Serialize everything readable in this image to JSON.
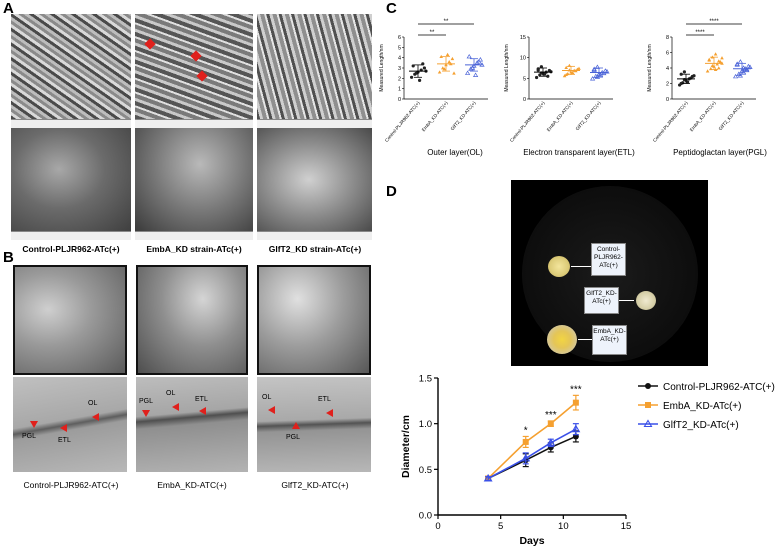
{
  "panels": {
    "A": {
      "letter": "A",
      "captions": [
        "Control-PLJR962-ATc(+)",
        "EmbA_KD strain-ATc(+)",
        "GlfT2_KD strain-ATc(+)"
      ]
    },
    "B": {
      "letter": "B",
      "captions": [
        "Control-PLJR962-ATC(+)",
        "EmbA_KD-ATC(+)",
        "GlfT2_KD-ATC(+)"
      ],
      "layer_labels": {
        "ol": "OL",
        "etl": "ETL",
        "pgl": "PGL"
      }
    },
    "C": {
      "letter": "C",
      "ylabel": "Measured Length/nm",
      "subplots": [
        {
          "caption": "Outer layer(OL)",
          "ylim": [
            0,
            6
          ],
          "yticks": [
            "0",
            "1",
            "2",
            "3",
            "4",
            "5",
            "6"
          ],
          "categories": [
            "Control-PLJR962-ATC(+)",
            "EmbA_KD-ATC(+)",
            "GlfT2_KD-ATC(+)"
          ],
          "sig": [
            "**",
            "**"
          ]
        },
        {
          "caption": "Electron transparent layer(ETL)",
          "ylim": [
            0,
            15
          ],
          "yticks": [
            "0",
            "5",
            "10",
            "15"
          ],
          "categories": [
            "Control-PLJR962-ATC(+)",
            "EmbA_KD-ATC(+)",
            "GlfT2_KD-ATC(+)"
          ],
          "sig": []
        },
        {
          "caption": "Peptidoglactan layer(PGL)",
          "ylim": [
            0,
            8
          ],
          "yticks": [
            "0",
            "2",
            "4",
            "6",
            "8"
          ],
          "categories": [
            "Control-PLJR962-ATC(+)",
            "EmbA_KD-ATC(+)",
            "GlfT2_KD-ATC(+)"
          ],
          "sig": [
            "****",
            "****"
          ]
        }
      ]
    },
    "D": {
      "letter": "D",
      "plate_labels": [
        "Control-PLJR962-ATc(+)",
        "GlfT2_KD-ATc(+)",
        "EmbA_KD-ATc(+)"
      ]
    }
  },
  "chart_data": [
    {
      "type": "scatter",
      "title": "Outer layer(OL)",
      "ylabel": "Measured Length/nm",
      "ylim": [
        0,
        6
      ],
      "categories": [
        "Control-PLJR962-ATC(+)",
        "EmbA_KD-ATC(+)",
        "GlfT2_KD-ATC(+)"
      ],
      "series": [
        {
          "name": "Control-PLJR962-ATC(+)",
          "color": "#222222",
          "mean": 2.7,
          "sd": 0.6,
          "values": [
            2.1,
            2.4,
            2.6,
            2.8,
            3.0,
            3.2,
            2.5,
            1.8,
            3.4,
            2.7
          ]
        },
        {
          "name": "EmbA_KD-ATC(+)",
          "color": "#f5a030",
          "mean": 3.4,
          "sd": 0.7,
          "values": [
            2.6,
            3.0,
            3.3,
            3.6,
            3.9,
            4.1,
            2.9,
            4.3,
            3.4,
            2.5
          ]
        },
        {
          "name": "GlfT2_KD-ATC(+)",
          "color": "#4a63d8",
          "mean": 3.3,
          "sd": 0.6,
          "values": [
            2.5,
            2.9,
            3.2,
            3.5,
            3.8,
            4.1,
            3.0,
            2.3,
            3.6,
            3.3
          ]
        }
      ],
      "annotations": [
        "**",
        "**"
      ]
    },
    {
      "type": "scatter",
      "title": "Electron transparent layer(ETL)",
      "ylabel": "Measured Length/nm",
      "ylim": [
        0,
        15
      ],
      "categories": [
        "Control-PLJR962-ATC(+)",
        "EmbA_KD-ATC(+)",
        "GlfT2_KD-ATC(+)"
      ],
      "series": [
        {
          "name": "Control-PLJR962-ATC(+)",
          "color": "#222222",
          "mean": 6.5,
          "sd": 1.0,
          "values": [
            5.2,
            5.8,
            6.2,
            6.5,
            6.9,
            7.3,
            7.8,
            6.0,
            5.5,
            6.6,
            7.0,
            6.3
          ]
        },
        {
          "name": "EmbA_KD-ATC(+)",
          "color": "#f5a030",
          "mean": 6.9,
          "sd": 1.0,
          "values": [
            5.6,
            6.1,
            6.5,
            6.9,
            7.2,
            7.6,
            8.1,
            6.4,
            6.8,
            7.4,
            5.9,
            7.0
          ]
        },
        {
          "name": "GlfT2_KD-ATC(+)",
          "color": "#4a63d8",
          "mean": 6.4,
          "sd": 1.1,
          "values": [
            4.9,
            5.5,
            6.0,
            6.4,
            6.8,
            7.2,
            7.7,
            5.8,
            6.2,
            6.6,
            7.0,
            5.3
          ]
        }
      ],
      "annotations": []
    },
    {
      "type": "scatter",
      "title": "Peptidoglactan layer(PGL)",
      "ylabel": "Measured Length/nm",
      "ylim": [
        0,
        8
      ],
      "categories": [
        "Control-PLJR962-ATC(+)",
        "EmbA_KD-ATC(+)",
        "GlfT2_KD-ATC(+)"
      ],
      "series": [
        {
          "name": "Control-PLJR962-ATC(+)",
          "color": "#222222",
          "mean": 2.6,
          "sd": 0.6,
          "values": [
            1.8,
            2.1,
            2.4,
            2.6,
            2.9,
            3.2,
            3.5,
            2.2,
            2.7,
            3.0,
            2.0,
            2.5
          ]
        },
        {
          "name": "EmbA_KD-ATC(+)",
          "color": "#f5a030",
          "mean": 4.6,
          "sd": 0.8,
          "values": [
            3.6,
            3.9,
            4.2,
            4.5,
            4.8,
            5.1,
            5.4,
            5.8,
            4.0,
            4.6,
            5.0,
            4.3,
            3.8,
            4.9,
            5.3
          ]
        },
        {
          "name": "GlfT2_KD-ATC(+)",
          "color": "#4a63d8",
          "mean": 3.9,
          "sd": 0.7,
          "values": [
            2.9,
            3.2,
            3.6,
            3.9,
            4.2,
            4.5,
            4.8,
            3.4,
            3.8,
            4.1,
            4.4,
            3.0,
            4.0,
            3.7
          ]
        }
      ],
      "annotations": [
        "****",
        "****"
      ]
    },
    {
      "type": "line",
      "xlabel": "Days",
      "ylabel": "Diameter/cm",
      "xlim": [
        0,
        15
      ],
      "ylim": [
        0.0,
        1.5
      ],
      "xticks": [
        "0",
        "5",
        "10",
        "15"
      ],
      "yticks": [
        "0.0",
        "0.5",
        "1.0",
        "1.5"
      ],
      "x": [
        4,
        7,
        9,
        11
      ],
      "legend_position": "right",
      "series": [
        {
          "name": "Control-PLJR962-ATC(+)",
          "color": "#111111",
          "marker": "circle",
          "values": [
            0.4,
            0.6,
            0.74,
            0.86
          ],
          "err": [
            0.02,
            0.07,
            0.05,
            0.06
          ]
        },
        {
          "name": "EmbA_KD-ATc(+)",
          "color": "#f5a030",
          "marker": "square",
          "values": [
            0.4,
            0.8,
            1.0,
            1.23
          ],
          "err": [
            0.02,
            0.06,
            0.03,
            0.08
          ]
        },
        {
          "name": "GlfT2_KD-ATc(+)",
          "color": "#3a50e8",
          "marker": "triangle",
          "values": [
            0.4,
            0.62,
            0.79,
            0.94
          ],
          "err": [
            0.02,
            0.06,
            0.04,
            0.06
          ]
        }
      ],
      "annotations": [
        {
          "x": 7,
          "text": "*"
        },
        {
          "x": 9,
          "text": "***"
        },
        {
          "x": 11,
          "text": "***"
        }
      ]
    }
  ]
}
